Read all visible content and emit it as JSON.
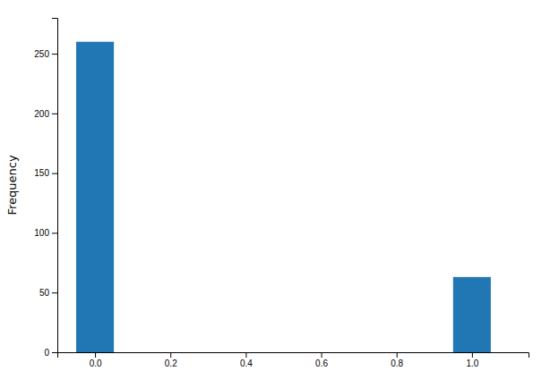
{
  "chart_data": {
    "type": "histogram",
    "bins": [
      -0.05,
      0.05,
      0.95,
      1.05
    ],
    "values": [
      260,
      0,
      63
    ],
    "color": "#2077b4",
    "ylabel": "Frequency",
    "xlim": [
      -0.1,
      1.15
    ],
    "ylim": [
      0,
      280
    ],
    "xticks": [
      {
        "value": 0.0,
        "label": "0.0"
      },
      0.2,
      0.4,
      0.6,
      0.8,
      {
        "value": 1.0,
        "label": "1.0"
      }
    ],
    "yticks": [
      0,
      50,
      100,
      150,
      200,
      250
    ],
    "grid": false
  }
}
